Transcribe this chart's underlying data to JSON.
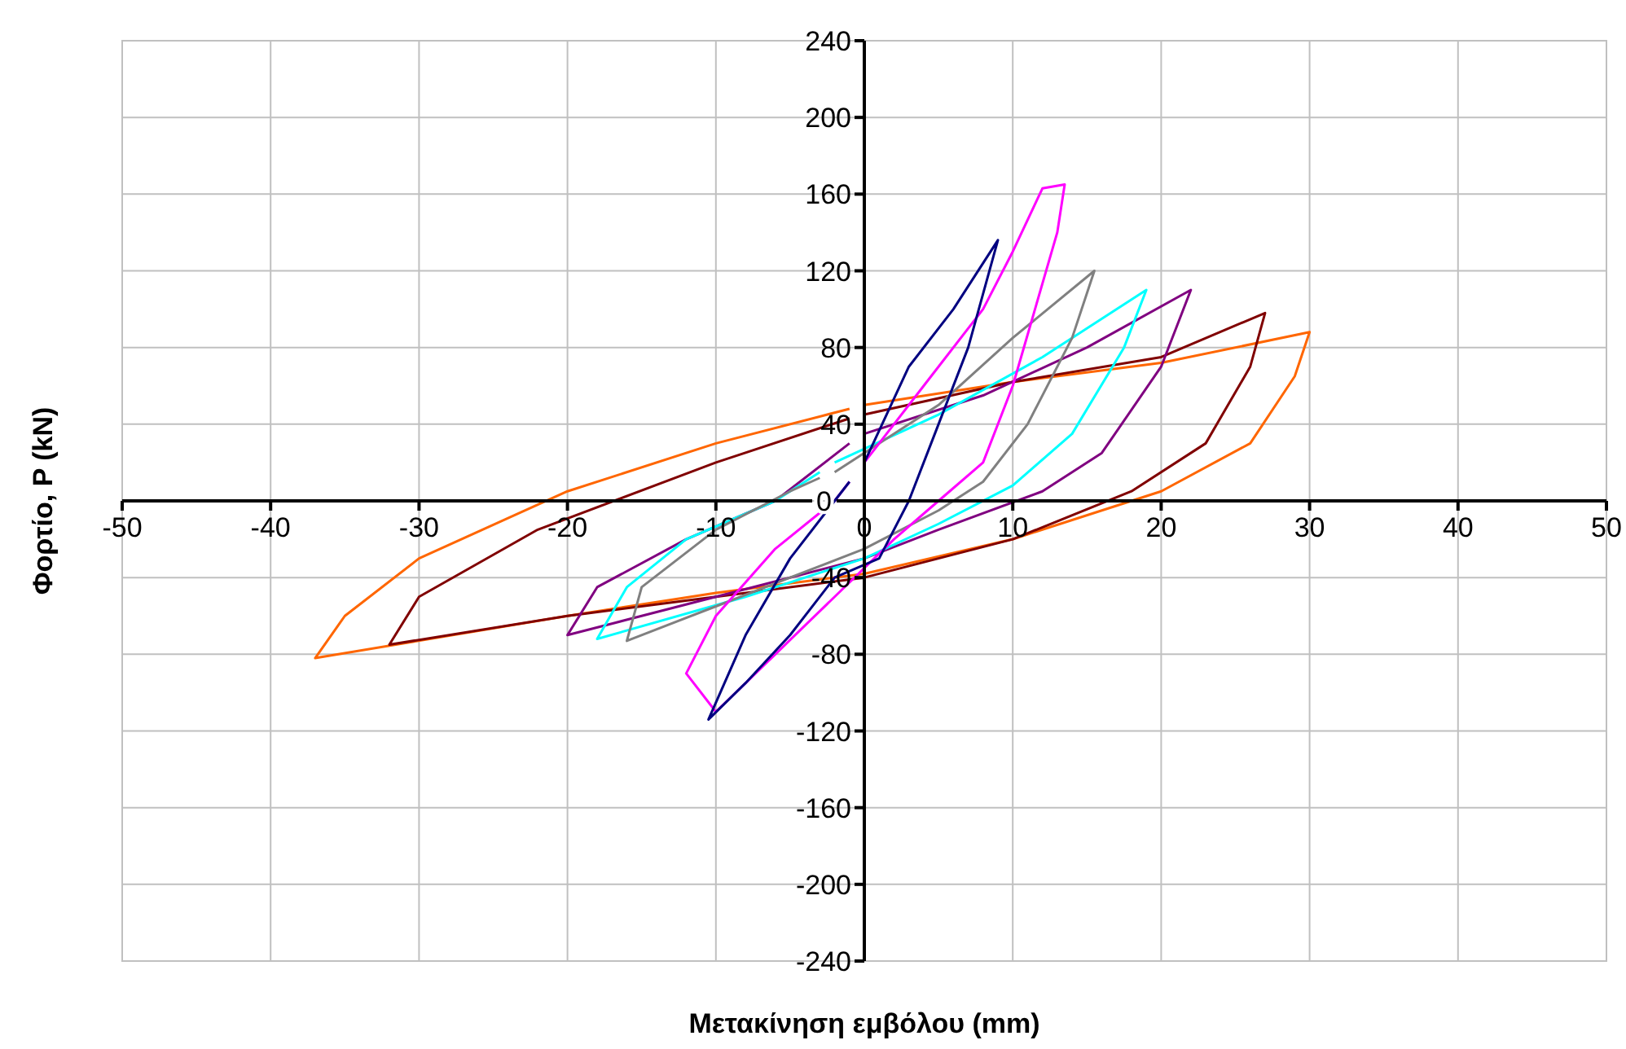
{
  "chart_data": {
    "type": "line",
    "xlabel": "Μετακίνηση εμβόλου (mm)",
    "ylabel": "Φορτίο, P (kN)",
    "xlim": [
      -50,
      50
    ],
    "ylim": [
      -240,
      240
    ],
    "xticks": [
      -50,
      -40,
      -30,
      -20,
      -10,
      0,
      10,
      20,
      30,
      40,
      50
    ],
    "yticks": [
      -240,
      -200,
      -160,
      -120,
      -80,
      -40,
      0,
      40,
      80,
      120,
      160,
      200,
      240
    ],
    "grid": true,
    "marker": "none",
    "line_style": "solid",
    "series": [
      {
        "color": "#ff6600",
        "x": [
          0,
          10,
          20,
          30,
          29,
          26,
          20,
          10,
          0,
          -10,
          -20,
          -37,
          -35,
          -30,
          -20,
          -10,
          -1
        ],
        "values": [
          50,
          62,
          72,
          88,
          65,
          30,
          5,
          -20,
          -38,
          -48,
          -60,
          -82,
          -60,
          -30,
          5,
          30,
          48
        ]
      },
      {
        "color": "#800000",
        "x": [
          0,
          10,
          20,
          27,
          26,
          23,
          18,
          10,
          0,
          -10,
          -20,
          -32,
          -30,
          -22,
          -10,
          -1
        ],
        "values": [
          45,
          62,
          75,
          98,
          70,
          30,
          5,
          -20,
          -40,
          -50,
          -60,
          -75,
          -50,
          -15,
          20,
          43
        ]
      },
      {
        "color": "#800080",
        "x": [
          0,
          8,
          15,
          22,
          20,
          16,
          12,
          5,
          0,
          -10,
          -20,
          -18,
          -12,
          -6,
          -1
        ],
        "values": [
          35,
          55,
          80,
          110,
          70,
          25,
          5,
          -15,
          -30,
          -50,
          -70,
          -45,
          -20,
          0,
          30
        ]
      },
      {
        "color": "#00ffff",
        "x": [
          -2,
          5,
          12,
          19,
          17.5,
          14,
          10,
          5,
          0,
          -8,
          -18,
          -16,
          -12,
          -6,
          -3
        ],
        "values": [
          20,
          45,
          75,
          110,
          80,
          35,
          8,
          -12,
          -30,
          -50,
          -72,
          -45,
          -20,
          0,
          15
        ]
      },
      {
        "color": "#808080",
        "x": [
          -2,
          5,
          10,
          15.5,
          14,
          11,
          8,
          5,
          0,
          -5,
          -10,
          -16,
          -15,
          -10,
          -5,
          -3
        ],
        "values": [
          15,
          50,
          85,
          120,
          85,
          40,
          10,
          -5,
          -25,
          -40,
          -55,
          -73,
          -45,
          -15,
          5,
          12
        ]
      },
      {
        "color": "#ff00ff",
        "x": [
          0,
          4,
          8,
          10,
          12,
          13.5,
          13,
          10,
          8,
          5,
          2,
          -2,
          -6,
          -10,
          -12,
          -10,
          -6,
          -2,
          -1
        ],
        "values": [
          20,
          60,
          100,
          130,
          163,
          165,
          140,
          60,
          20,
          0,
          -20,
          -50,
          -80,
          -110,
          -90,
          -60,
          -25,
          0,
          10
        ]
      },
      {
        "color": "#000080",
        "x": [
          0,
          3,
          6,
          9,
          7,
          5,
          3,
          1,
          -2,
          -5,
          -8,
          -10.5,
          -8,
          -5,
          -2,
          -1
        ],
        "values": [
          20,
          70,
          100,
          136,
          80,
          40,
          0,
          -30,
          -40,
          -70,
          -95,
          -114,
          -70,
          -30,
          0,
          10
        ]
      }
    ]
  }
}
